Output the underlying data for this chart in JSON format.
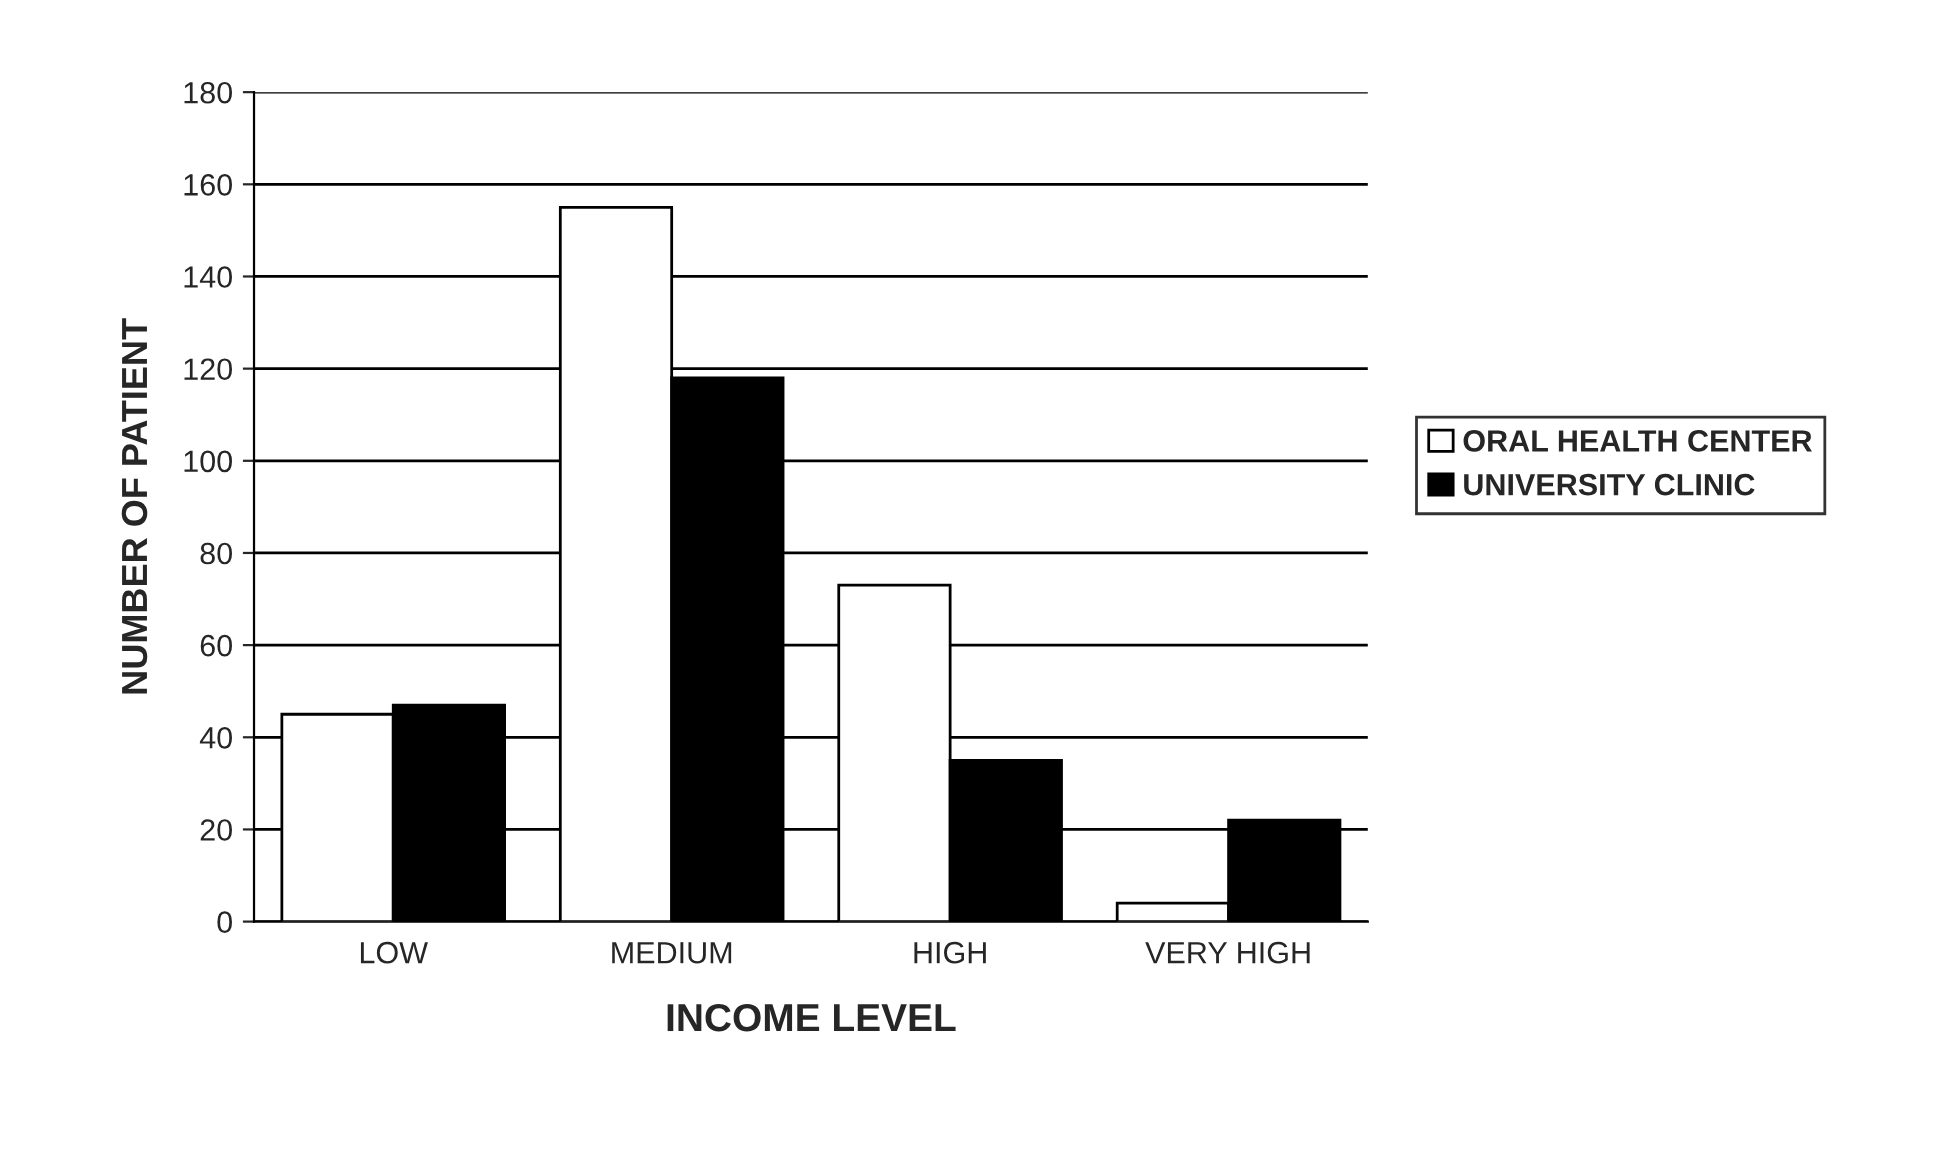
{
  "chart_data": {
    "type": "bar",
    "xlabel": "INCOME LEVEL",
    "ylabel": "NUMBER OF PATIENT",
    "categories": [
      "LOW",
      "MEDIUM",
      "HIGH",
      "VERY HIGH"
    ],
    "series": [
      {
        "name": "ORAL HEALTH CENTER",
        "color": "#ffffff",
        "values": [
          45,
          155,
          73,
          4
        ]
      },
      {
        "name": "UNIVERSITY CLINIC",
        "color": "#000000",
        "values": [
          47,
          118,
          35,
          22
        ]
      }
    ],
    "ylim": [
      0,
      180
    ],
    "yticks": [
      0,
      20,
      40,
      60,
      80,
      100,
      120,
      140,
      160,
      180
    ],
    "grid": "y",
    "legend": "right"
  }
}
